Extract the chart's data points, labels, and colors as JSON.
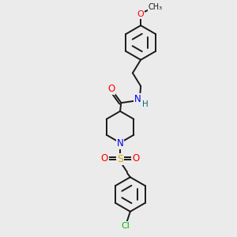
{
  "bg_color": "#ebebeb",
  "bond_color": "#1a1a1a",
  "atom_colors": {
    "O": "#ff0000",
    "N": "#0000ee",
    "S": "#ccaa00",
    "Cl": "#00bb00",
    "H": "#007070",
    "C": "#1a1a1a"
  },
  "lw": 1.4,
  "fig_bg": "#ebebeb"
}
